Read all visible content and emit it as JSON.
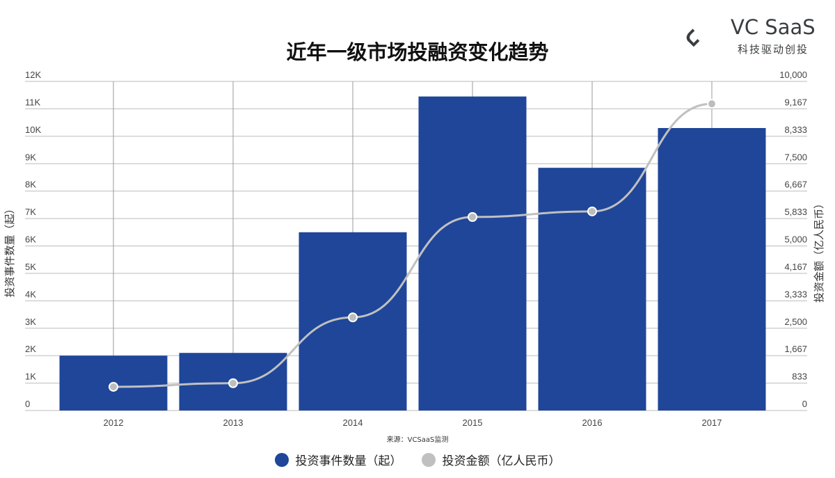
{
  "brand": {
    "name": "VC SaaS",
    "tagline": "科技驱动创投",
    "color": "#3a3d3f"
  },
  "source": "来源：VCSaaS监测",
  "chart_data": {
    "type": "bar+line",
    "title": "近年一级市场投融资变化趋势",
    "categories": [
      "2012",
      "2013",
      "2014",
      "2015",
      "2016",
      "2017"
    ],
    "y_left": {
      "label": "投资事件数量（起）",
      "range": [
        0,
        12000
      ],
      "ticks": [
        "0",
        "1K",
        "2K",
        "3K",
        "4K",
        "5K",
        "6K",
        "7K",
        "8K",
        "9K",
        "10K",
        "11K",
        "12K"
      ]
    },
    "y_right": {
      "label": "投资金额（亿人民币）",
      "range": [
        0,
        10000
      ],
      "ticks": [
        "0",
        "833",
        "1,667",
        "2,500",
        "3,333",
        "4,167",
        "5,000",
        "5,833",
        "6,667",
        "7,500",
        "8,333",
        "9,167",
        "10,000"
      ]
    },
    "grid": true,
    "legend_position": "bottom",
    "series": [
      {
        "name": "投资事件数量（起）",
        "type": "bar",
        "axis": "left",
        "color": "#1f4699",
        "values": [
          2000,
          2100,
          6500,
          11450,
          8850,
          10300
        ]
      },
      {
        "name": "投资金额（亿人民币）",
        "type": "line",
        "axis": "right",
        "color": "#c0c0c0",
        "values": [
          720,
          830,
          2830,
          5880,
          6050,
          9320
        ]
      }
    ]
  }
}
